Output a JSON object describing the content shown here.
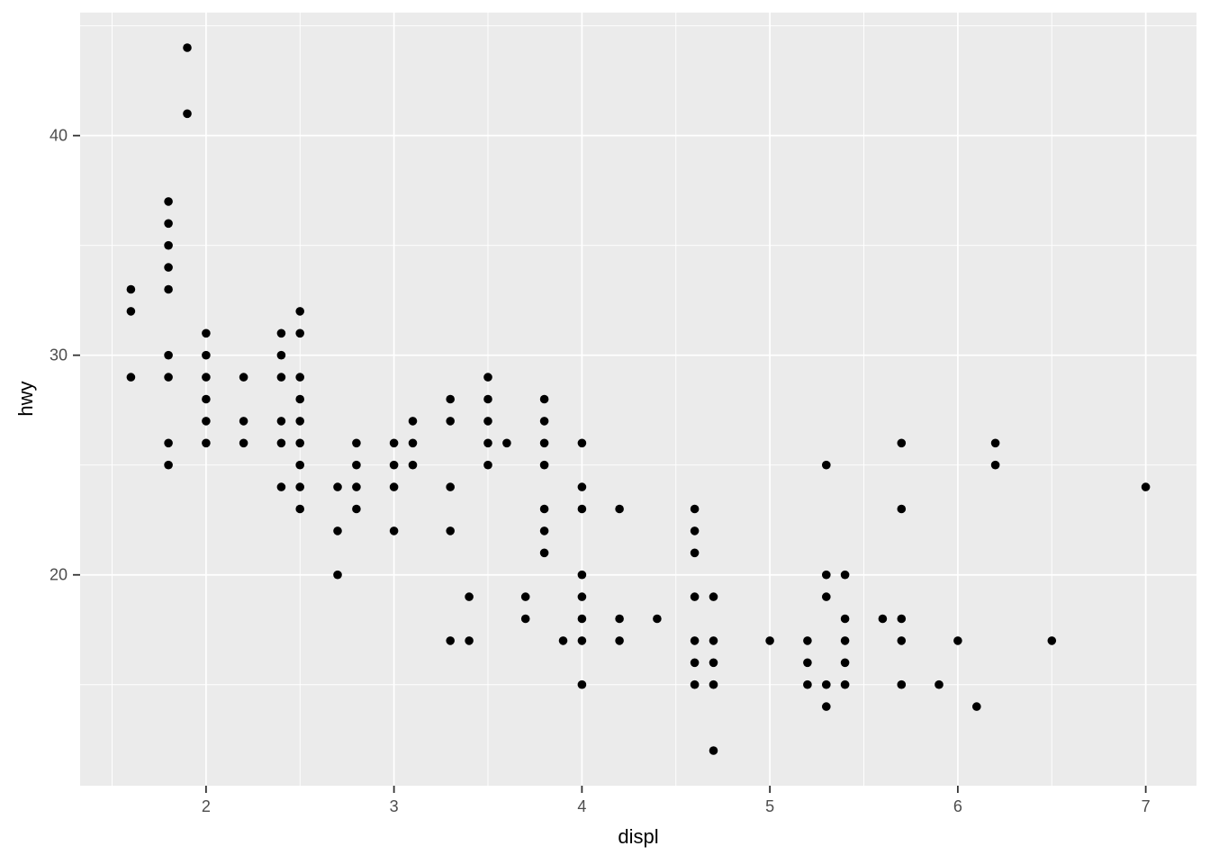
{
  "chart_data": {
    "type": "scatter",
    "title": "",
    "xlabel": "displ",
    "ylabel": "hwy",
    "xlim": [
      1.33,
      7.27
    ],
    "ylim": [
      10.4,
      45.6
    ],
    "x_major_ticks": [
      2,
      3,
      4,
      5,
      6,
      7
    ],
    "y_major_ticks": [
      20,
      30,
      40
    ],
    "x_minor_ticks": [
      1.5,
      2.5,
      3.5,
      4.5,
      5.5,
      6.5
    ],
    "y_minor_ticks": [
      15,
      25,
      35,
      45
    ],
    "grid": "on",
    "legend": "none",
    "style": {
      "panel_bg": "#EBEBEB",
      "grid_color": "#FFFFFF",
      "point_color": "#000000",
      "tick_mark_color": "#333333",
      "tick_label_color": "#4D4D4D",
      "axis_title_color": "#000000"
    },
    "points": [
      [
        1.6,
        29
      ],
      [
        1.6,
        32
      ],
      [
        1.6,
        33
      ],
      [
        1.8,
        25
      ],
      [
        1.8,
        26
      ],
      [
        1.8,
        29
      ],
      [
        1.8,
        30
      ],
      [
        1.8,
        33
      ],
      [
        1.8,
        34
      ],
      [
        1.8,
        35
      ],
      [
        1.8,
        36
      ],
      [
        1.8,
        37
      ],
      [
        1.9,
        41
      ],
      [
        1.9,
        44
      ],
      [
        2,
        26
      ],
      [
        2,
        27
      ],
      [
        2,
        28
      ],
      [
        2,
        29
      ],
      [
        2,
        30
      ],
      [
        2,
        31
      ],
      [
        2.2,
        26
      ],
      [
        2.2,
        27
      ],
      [
        2.2,
        29
      ],
      [
        2.4,
        24
      ],
      [
        2.4,
        26
      ],
      [
        2.4,
        27
      ],
      [
        2.4,
        29
      ],
      [
        2.4,
        30
      ],
      [
        2.4,
        31
      ],
      [
        2.5,
        23
      ],
      [
        2.5,
        24
      ],
      [
        2.5,
        25
      ],
      [
        2.5,
        26
      ],
      [
        2.5,
        27
      ],
      [
        2.5,
        28
      ],
      [
        2.5,
        29
      ],
      [
        2.5,
        31
      ],
      [
        2.5,
        32
      ],
      [
        2.7,
        20
      ],
      [
        2.7,
        22
      ],
      [
        2.7,
        24
      ],
      [
        2.8,
        23
      ],
      [
        2.8,
        24
      ],
      [
        2.8,
        25
      ],
      [
        2.8,
        26
      ],
      [
        3,
        22
      ],
      [
        3,
        24
      ],
      [
        3,
        25
      ],
      [
        3,
        26
      ],
      [
        3.1,
        25
      ],
      [
        3.1,
        26
      ],
      [
        3.1,
        27
      ],
      [
        3.3,
        17
      ],
      [
        3.3,
        22
      ],
      [
        3.3,
        24
      ],
      [
        3.3,
        27
      ],
      [
        3.3,
        28
      ],
      [
        3.4,
        17
      ],
      [
        3.4,
        19
      ],
      [
        3.5,
        25
      ],
      [
        3.5,
        26
      ],
      [
        3.5,
        27
      ],
      [
        3.5,
        28
      ],
      [
        3.5,
        29
      ],
      [
        3.6,
        26
      ],
      [
        3.7,
        18
      ],
      [
        3.7,
        19
      ],
      [
        3.8,
        21
      ],
      [
        3.8,
        22
      ],
      [
        3.8,
        23
      ],
      [
        3.8,
        25
      ],
      [
        3.8,
        26
      ],
      [
        3.8,
        27
      ],
      [
        3.8,
        28
      ],
      [
        3.9,
        17
      ],
      [
        4,
        15
      ],
      [
        4,
        17
      ],
      [
        4,
        18
      ],
      [
        4,
        19
      ],
      [
        4,
        20
      ],
      [
        4,
        23
      ],
      [
        4,
        24
      ],
      [
        4,
        26
      ],
      [
        4.2,
        17
      ],
      [
        4.2,
        18
      ],
      [
        4.2,
        23
      ],
      [
        4.4,
        18
      ],
      [
        4.6,
        15
      ],
      [
        4.6,
        16
      ],
      [
        4.6,
        17
      ],
      [
        4.6,
        19
      ],
      [
        4.6,
        21
      ],
      [
        4.6,
        22
      ],
      [
        4.6,
        23
      ],
      [
        4.7,
        12
      ],
      [
        4.7,
        15
      ],
      [
        4.7,
        16
      ],
      [
        4.7,
        17
      ],
      [
        4.7,
        19
      ],
      [
        5,
        17
      ],
      [
        5.2,
        15
      ],
      [
        5.2,
        16
      ],
      [
        5.2,
        17
      ],
      [
        5.3,
        14
      ],
      [
        5.3,
        15
      ],
      [
        5.3,
        19
      ],
      [
        5.3,
        20
      ],
      [
        5.3,
        25
      ],
      [
        5.4,
        15
      ],
      [
        5.4,
        16
      ],
      [
        5.4,
        17
      ],
      [
        5.4,
        18
      ],
      [
        5.4,
        20
      ],
      [
        5.6,
        18
      ],
      [
        5.7,
        15
      ],
      [
        5.7,
        17
      ],
      [
        5.7,
        18
      ],
      [
        5.7,
        23
      ],
      [
        5.7,
        26
      ],
      [
        5.9,
        15
      ],
      [
        6,
        17
      ],
      [
        6.1,
        14
      ],
      [
        6.2,
        25
      ],
      [
        6.2,
        26
      ],
      [
        6.5,
        17
      ],
      [
        7,
        24
      ]
    ]
  }
}
